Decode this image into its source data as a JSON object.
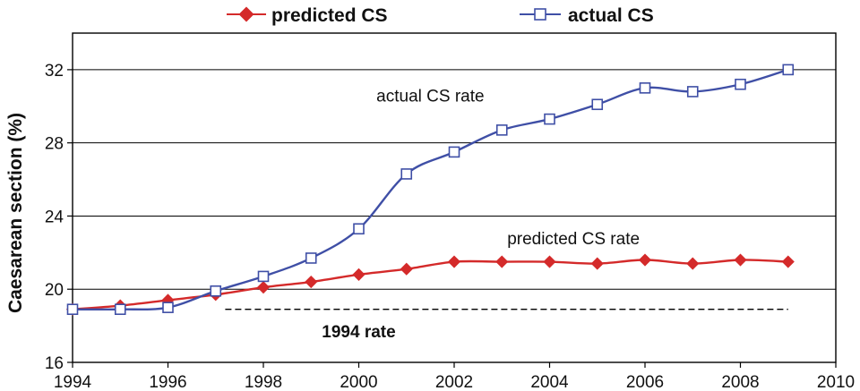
{
  "colors": {
    "predicted": "#d42a2a",
    "actual": "#3f4fa6",
    "grid": "#000000"
  },
  "chart_data": {
    "type": "line",
    "xlabel": "",
    "ylabel": "Caesarean section (%)",
    "xlim": [
      1994,
      2010
    ],
    "ylim": [
      16,
      34
    ],
    "xticks": [
      1994,
      1996,
      1998,
      2000,
      2002,
      2004,
      2006,
      2008,
      2010
    ],
    "yticks": [
      16,
      20,
      24,
      28,
      32
    ],
    "grid": "horizontal",
    "legend_position": "top",
    "series": [
      {
        "name": "predicted CS",
        "marker": "filled-diamond",
        "x": [
          1994,
          1995,
          1996,
          1997,
          1998,
          1999,
          2000,
          2001,
          2002,
          2003,
          2004,
          2005,
          2006,
          2007,
          2008,
          2009
        ],
        "y": [
          18.9,
          19.1,
          19.4,
          19.7,
          20.1,
          20.4,
          20.8,
          21.1,
          21.5,
          21.5,
          21.5,
          21.4,
          21.6,
          21.4,
          21.6,
          21.5
        ]
      },
      {
        "name": "actual CS",
        "marker": "open-square",
        "x": [
          1994,
          1995,
          1996,
          1997,
          1998,
          1999,
          2000,
          2001,
          2002,
          2003,
          2004,
          2005,
          2006,
          2007,
          2008,
          2009
        ],
        "y": [
          18.9,
          18.9,
          19.0,
          19.9,
          20.7,
          21.7,
          23.3,
          26.3,
          27.5,
          28.7,
          29.3,
          30.1,
          31.0,
          30.8,
          31.2,
          32.0
        ]
      }
    ],
    "reference_line": {
      "label": "1994 rate",
      "y": 18.9,
      "x_range": [
        1997.2,
        2009
      ]
    },
    "annotations": [
      {
        "text": "actual CS rate",
        "x": 2001.5,
        "y": 30.6
      },
      {
        "text": "predicted CS rate",
        "x": 2004.5,
        "y": 22.8
      },
      {
        "text": "1994 rate",
        "x": 2000.0,
        "y": 17.7
      }
    ]
  }
}
